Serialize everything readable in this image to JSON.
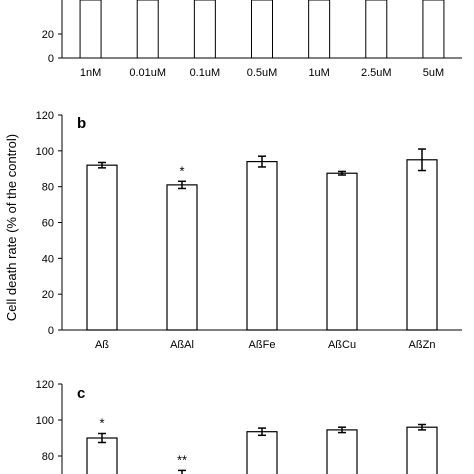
{
  "chart_data": [
    {
      "type": "bar",
      "panel_label": "",
      "categories": [
        "1nM",
        "0.01uM",
        "0.1uM",
        "0.5uM",
        "1uM",
        "2.5uM",
        "5uM"
      ],
      "values": [
        null,
        null,
        null,
        null,
        null,
        null,
        null
      ],
      "errors": [
        null,
        null,
        null,
        null,
        null,
        null,
        null
      ],
      "annotations": [
        "",
        "",
        "",
        "",
        "",
        "",
        ""
      ],
      "yticks": [
        0,
        20
      ],
      "ylim": [
        0,
        120
      ],
      "xlabel": "",
      "ylabel": ""
    },
    {
      "type": "bar",
      "panel_label": "b",
      "categories": [
        "Aß",
        "AßAl",
        "AßFe",
        "AßCu",
        "AßZn"
      ],
      "values": [
        92,
        81,
        94,
        87.5,
        95
      ],
      "errors": [
        1.5,
        2,
        3,
        1,
        6
      ],
      "annotations": [
        "",
        "*",
        "",
        "",
        ""
      ],
      "yticks": [
        0,
        20,
        40,
        60,
        80,
        100,
        120
      ],
      "ylim": [
        0,
        120
      ],
      "xlabel": "",
      "ylabel": "Cell death rate (% of the control)"
    },
    {
      "type": "bar",
      "panel_label": "c",
      "categories": [
        "",
        "",
        "",
        "",
        ""
      ],
      "values": [
        90,
        69,
        93.5,
        94.5,
        96
      ],
      "errors": [
        2.5,
        3,
        2,
        1.5,
        1.5
      ],
      "annotations": [
        "*",
        "**",
        "",
        "",
        ""
      ],
      "yticks": [
        80,
        100,
        120
      ],
      "ylim": [
        0,
        120
      ],
      "xlabel": "",
      "ylabel": ""
    }
  ]
}
